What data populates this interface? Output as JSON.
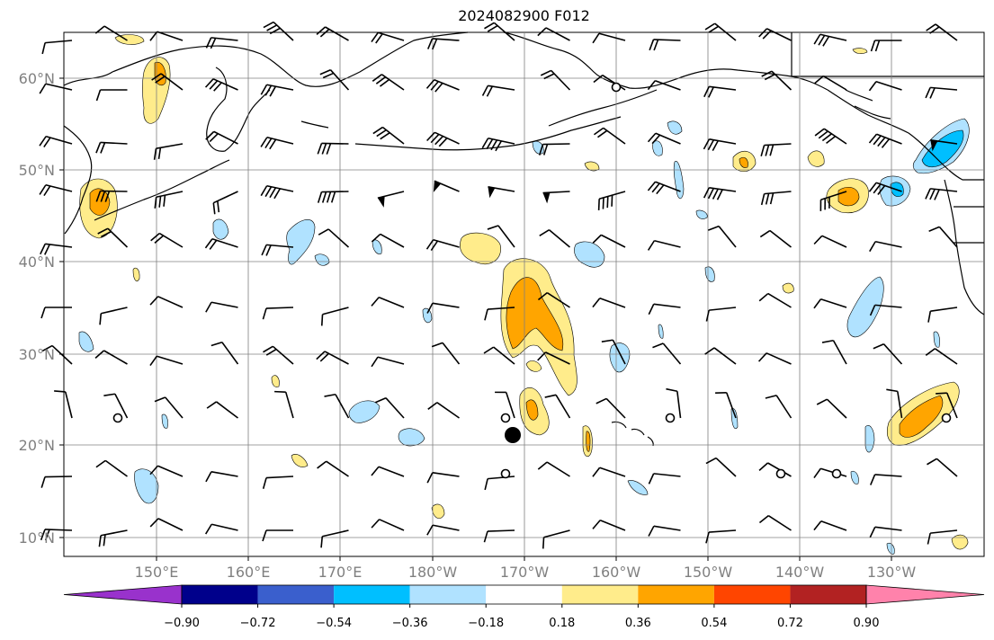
{
  "title": "2024082900 F012",
  "lat_labels": [
    "60°N",
    "50°N",
    "40°N",
    "30°N",
    "20°N",
    "10°N"
  ],
  "lon_labels": [
    "150°E",
    "160°E",
    "170°E",
    "180°W",
    "170°W",
    "160°W",
    "150°W",
    "140°W",
    "130°W"
  ],
  "colorbar": {
    "ticks": [
      "−0.90",
      "−0.72",
      "−0.54",
      "−0.36",
      "−0.18",
      "0.18",
      "0.36",
      "0.54",
      "0.72",
      "0.90"
    ],
    "colors": [
      "#9932CC",
      "#00008B",
      "#3A5FCD",
      "#00BFFF",
      "#B0E2FF",
      "#FFFFFF",
      "#FFEC8B",
      "#FFA500",
      "#FF4500",
      "#B22222",
      "#FF82AB"
    ]
  },
  "fill_colors": {
    "light_blue": "#B0E2FF",
    "blue": "#00BFFF",
    "light_yellow": "#FFEC8B",
    "orange": "#FFA500"
  },
  "markers": {
    "dot": "tropical_center",
    "open_circles": "station_markers"
  }
}
